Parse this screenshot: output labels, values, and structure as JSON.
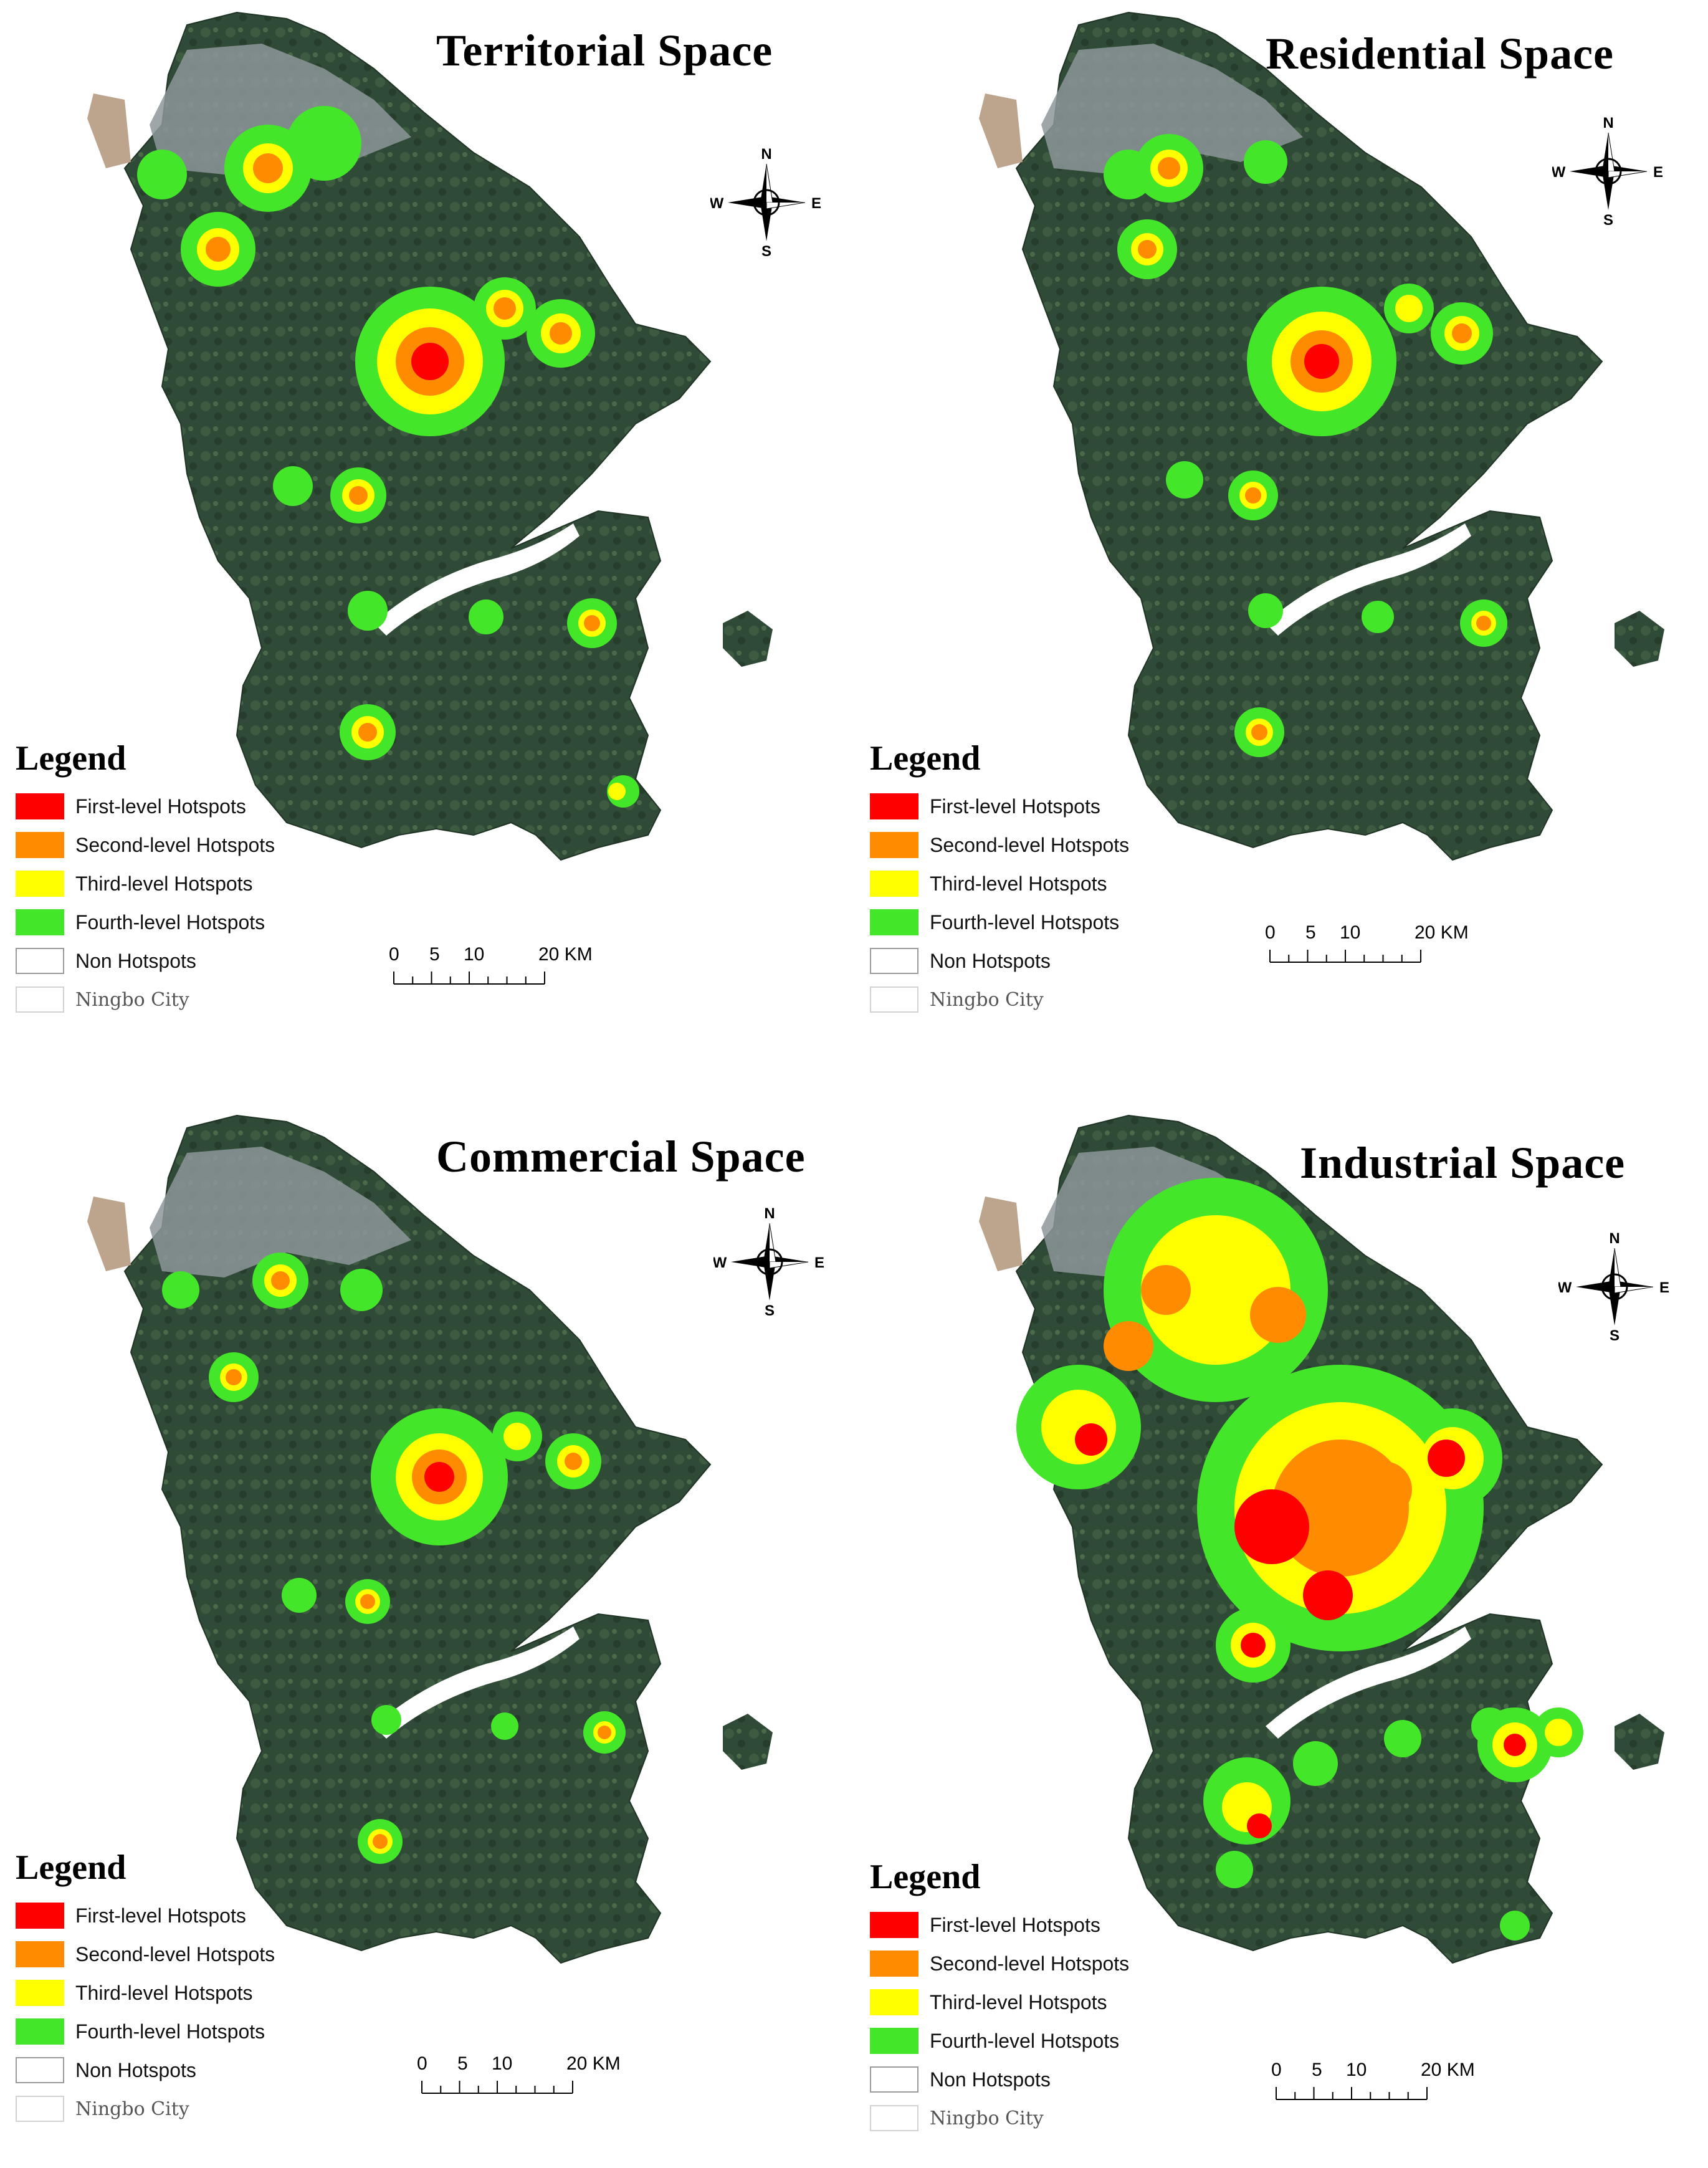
{
  "panels": [
    {
      "title": "Territorial Space",
      "compass": {
        "n": "N",
        "s": "S",
        "e": "E",
        "w": "W"
      },
      "legend": {
        "title": "Legend",
        "items": [
          {
            "label": "First-level Hotspots",
            "color": "#ff0000"
          },
          {
            "label": "Second-level Hotspots",
            "color": "#ff8c00"
          },
          {
            "label": "Third-level Hotspots",
            "color": "#ffff00"
          },
          {
            "label": "Fourth-level Hotspots",
            "color": "#44e62a"
          },
          {
            "label": "Non Hotspots",
            "color": "#ffffff"
          },
          {
            "label": "Ningbo City",
            "color": "#ffffff"
          }
        ]
      },
      "scale": {
        "labels": [
          "0",
          "5",
          "10",
          "20 KM"
        ]
      }
    },
    {
      "title": "Residential Space",
      "compass": {
        "n": "N",
        "s": "S",
        "e": "E",
        "w": "W"
      },
      "legend": {
        "title": "Legend",
        "items": [
          {
            "label": "First-level Hotspots",
            "color": "#ff0000"
          },
          {
            "label": "Second-level Hotspots",
            "color": "#ff8c00"
          },
          {
            "label": "Third-level Hotspots",
            "color": "#ffff00"
          },
          {
            "label": "Fourth-level Hotspots",
            "color": "#44e62a"
          },
          {
            "label": "Non Hotspots",
            "color": "#ffffff"
          },
          {
            "label": "Ningbo City",
            "color": "#ffffff"
          }
        ]
      },
      "scale": {
        "labels": [
          "0",
          "5",
          "10",
          "20 KM"
        ]
      }
    },
    {
      "title": "Commercial Space",
      "compass": {
        "n": "N",
        "s": "S",
        "e": "E",
        "w": "W"
      },
      "legend": {
        "title": "Legend",
        "items": [
          {
            "label": "First-level Hotspots",
            "color": "#ff0000"
          },
          {
            "label": "Second-level Hotspots",
            "color": "#ff8c00"
          },
          {
            "label": "Third-level Hotspots",
            "color": "#ffff00"
          },
          {
            "label": "Fourth-level Hotspots",
            "color": "#44e62a"
          },
          {
            "label": "Non Hotspots",
            "color": "#ffffff"
          },
          {
            "label": "Ningbo City",
            "color": "#ffffff"
          }
        ]
      },
      "scale": {
        "labels": [
          "0",
          "5",
          "10",
          "20 KM"
        ]
      }
    },
    {
      "title": "Industrial Space",
      "compass": {
        "n": "N",
        "s": "S",
        "e": "E",
        "w": "W"
      },
      "legend": {
        "title": "Legend",
        "items": [
          {
            "label": "First-level Hotspots",
            "color": "#ff0000"
          },
          {
            "label": "Second-level Hotspots",
            "color": "#ff8c00"
          },
          {
            "label": "Third-level Hotspots",
            "color": "#ffff00"
          },
          {
            "label": "Fourth-level Hotspots",
            "color": "#44e62a"
          },
          {
            "label": "Non Hotspots",
            "color": "#ffffff"
          },
          {
            "label": "Ningbo City",
            "color": "#ffffff"
          }
        ]
      },
      "scale": {
        "labels": [
          "0",
          "5",
          "10",
          "20 KM"
        ]
      }
    }
  ],
  "colors": {
    "land_dark": "#2f4a36",
    "land_mid": "#3d5b40",
    "urban": "#8d979a",
    "coast": "#bda48d",
    "water": "#ffffff"
  }
}
